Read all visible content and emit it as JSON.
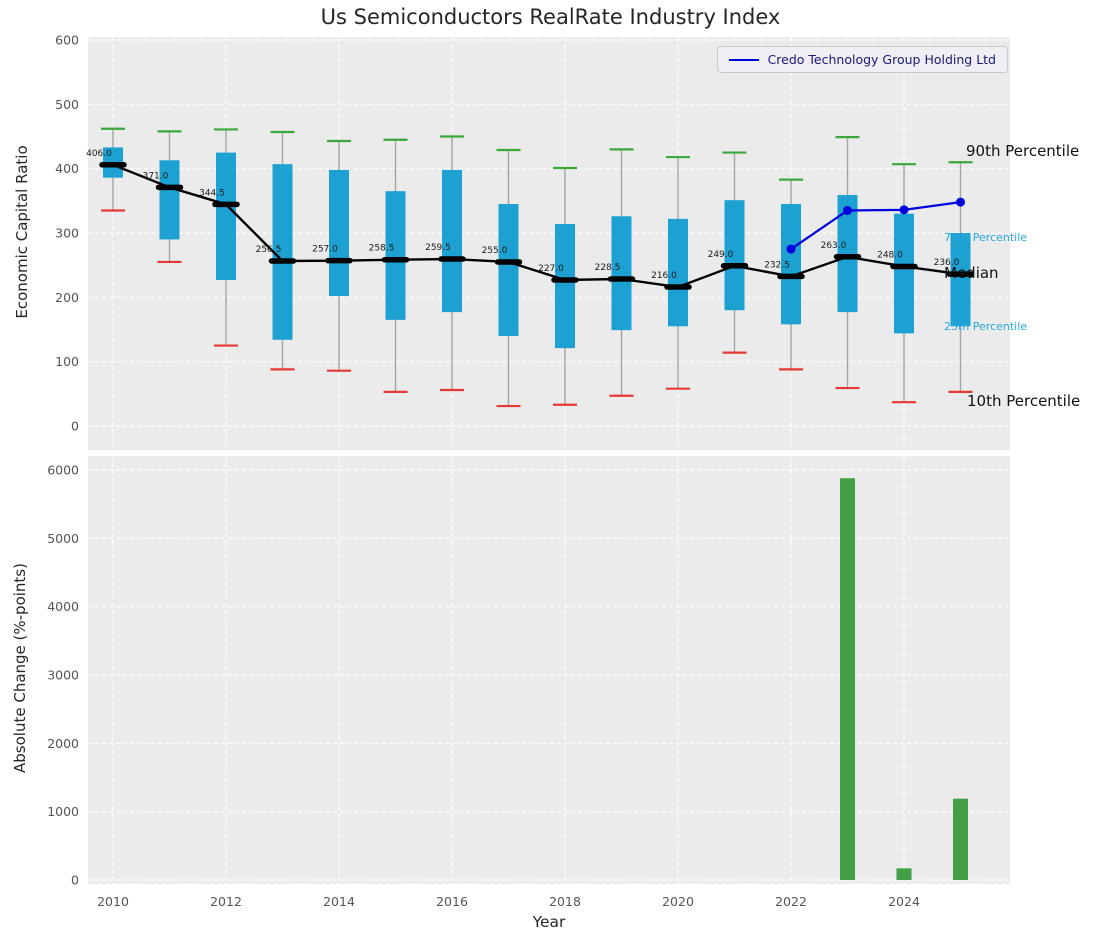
{
  "figure": {
    "title": "Us Semiconductors RealRate Industry Index",
    "xlabel": "Year"
  },
  "legend": {
    "label": "Credo Technology Group Holding Ltd"
  },
  "annotations": {
    "p90": "90th Percentile",
    "p75": "75th Percentile",
    "median": "Median",
    "p25": "25th Percentile",
    "p10": "10th Percentile"
  },
  "colors": {
    "plot_bg": "#EBEBEB",
    "grid": "#FFFFFF",
    "box_fill": "#1DA0D2",
    "median_color": "#000000",
    "median_label_color": "#1A1A1A",
    "cap_high": "#3AA83A",
    "cap_low": "#E53935",
    "whisker": "#A3A3A3",
    "credo_line": "#0000DD",
    "bar_fill": "#43A047",
    "tick_color": "#555555",
    "annotation_cyan": "#29A8DC",
    "annotation_black": "#111111"
  },
  "chart_data": [
    {
      "type": "boxplot+line",
      "title": "Us Semiconductors RealRate Industry Index",
      "ylabel": "Economic Capital Ratio",
      "ylim": [
        0,
        600
      ],
      "yticks": [
        0,
        100,
        200,
        300,
        400,
        500,
        600
      ],
      "xticks": [
        2010,
        2012,
        2014,
        2016,
        2018,
        2020,
        2022,
        2024
      ],
      "grid": true,
      "legend_position": "upper right",
      "years": [
        2010,
        2011,
        2012,
        2013,
        2014,
        2015,
        2016,
        2017,
        2018,
        2019,
        2020,
        2021,
        2022,
        2023,
        2024,
        2025
      ],
      "median": [
        406.0,
        371.0,
        344.5,
        256.5,
        257.0,
        258.5,
        259.5,
        255.0,
        227.0,
        228.5,
        216.0,
        249.0,
        232.5,
        263.0,
        248.0,
        236.0
      ],
      "median_labels": [
        "406.0",
        "371.0",
        "344.5",
        "256.5",
        "257.0",
        "258.5",
        "259.5",
        "255.0",
        "227.0",
        "228.5",
        "216.0",
        "249.0",
        "232.5",
        "263.0",
        "248.0",
        "236.0"
      ],
      "p90": [
        462,
        458,
        461,
        457,
        443,
        445,
        450,
        429,
        401,
        430,
        418,
        425,
        383,
        449,
        407,
        410
      ],
      "p75": [
        433,
        413,
        425,
        407,
        398,
        365,
        398,
        345,
        314,
        326,
        322,
        351,
        345,
        359,
        330,
        300
      ],
      "p25": [
        386,
        290,
        227,
        134,
        202,
        165,
        177,
        140,
        121,
        149,
        155,
        180,
        158,
        177,
        144,
        155
      ],
      "p10": [
        335,
        255,
        125,
        88,
        86,
        53,
        56,
        31,
        33,
        47,
        58,
        114,
        88,
        59,
        37,
        53
      ],
      "series": [
        {
          "name": "Credo Technology Group Holding Ltd",
          "x": [
            2022,
            2023,
            2024,
            2025
          ],
          "values": [
            275,
            335,
            336,
            348
          ]
        }
      ]
    },
    {
      "type": "bar",
      "ylabel": "Absolute Change (%-points)",
      "xlabel": "Year",
      "ylim": [
        0,
        6000
      ],
      "yticks": [
        0,
        1000,
        2000,
        3000,
        4000,
        5000,
        6000
      ],
      "xticks": [
        2010,
        2012,
        2014,
        2016,
        2018,
        2020,
        2022,
        2024
      ],
      "grid": true,
      "categories": [
        2023,
        2024,
        2025
      ],
      "values": [
        5880,
        170,
        1190
      ]
    }
  ]
}
